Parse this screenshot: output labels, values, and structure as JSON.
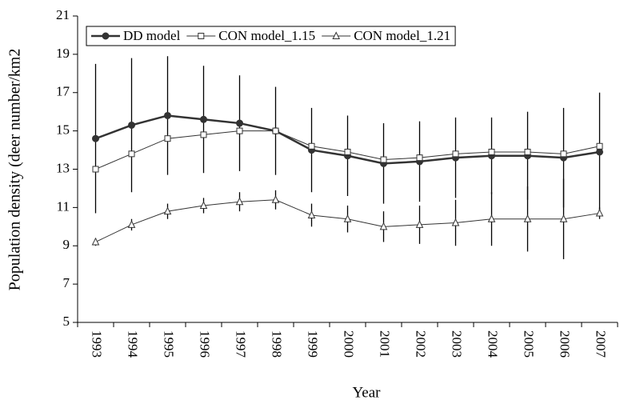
{
  "chart_data": {
    "type": "line",
    "x_label": "Year",
    "y_label": "Population density (deer number/km2",
    "categories": [
      "1993",
      "1994",
      "1995",
      "1996",
      "1997",
      "1998",
      "1999",
      "2000",
      "2001",
      "2002",
      "2003",
      "2004",
      "2005",
      "2006",
      "2007"
    ],
    "ylim": [
      5,
      21
    ],
    "yticks": [
      5,
      7,
      9,
      11,
      13,
      15,
      17,
      19,
      21
    ],
    "legend": "top-left",
    "series": [
      {
        "name": "DD model",
        "color": "#333333",
        "marker": "circle",
        "values": [
          14.6,
          15.3,
          15.8,
          15.6,
          15.4,
          15.0,
          14.0,
          13.7,
          13.3,
          13.4,
          13.6,
          13.7,
          13.7,
          13.6,
          13.9
        ],
        "errors": [
          3.9,
          3.5,
          3.1,
          2.8,
          2.5,
          2.3,
          2.2,
          2.1,
          2.1,
          2.1,
          2.1,
          2.0,
          2.3,
          2.6,
          3.1
        ]
      },
      {
        "name": "CON model_1.15",
        "color": "#333333",
        "marker": "square",
        "values": [
          13.0,
          13.8,
          14.6,
          14.8,
          15.0,
          15.0,
          14.2,
          13.9,
          13.5,
          13.6,
          13.8,
          13.9,
          13.9,
          13.8,
          14.2
        ]
      },
      {
        "name": "CON model_1.21",
        "color": "#333333",
        "marker": "triangle",
        "values": [
          9.2,
          10.1,
          10.8,
          11.1,
          11.3,
          11.4,
          10.6,
          10.4,
          10.0,
          10.1,
          10.2,
          10.4,
          10.4,
          10.4,
          10.7
        ],
        "errors": [
          0.2,
          0.3,
          0.4,
          0.4,
          0.5,
          0.5,
          0.6,
          0.7,
          0.8,
          1.0,
          1.2,
          1.4,
          1.7,
          2.1,
          0.3
        ]
      }
    ]
  }
}
